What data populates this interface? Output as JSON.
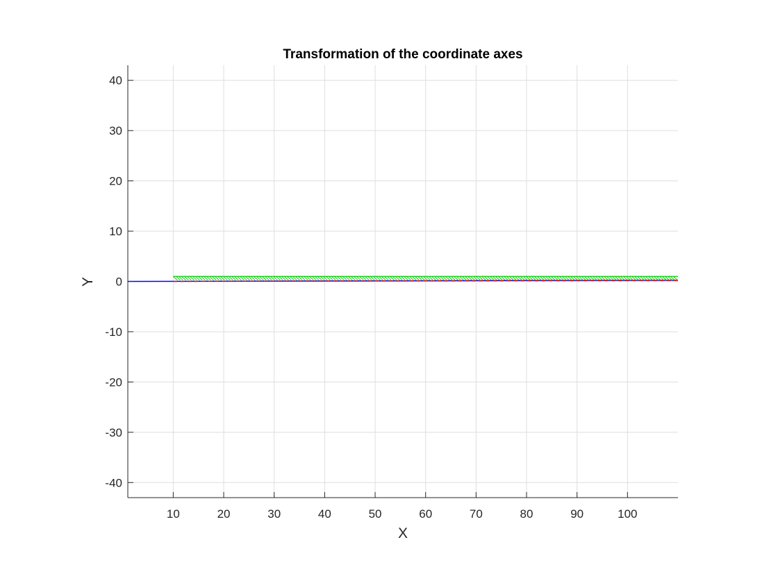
{
  "chart_data": {
    "type": "line",
    "title": "Transformation of the coordinate axes",
    "xlabel": "X",
    "ylabel": "Y",
    "xlim": [
      1,
      110
    ],
    "ylim": [
      -43,
      43
    ],
    "xticks": [
      10,
      20,
      30,
      40,
      50,
      60,
      70,
      80,
      90,
      100
    ],
    "yticks": [
      -40,
      -30,
      -20,
      -10,
      0,
      10,
      20,
      30,
      40
    ],
    "grid": true,
    "legend": "none",
    "series": [
      {
        "color": "#0000ff",
        "style": "solid",
        "x": [
          1,
          110
        ],
        "y": [
          0,
          0.25
        ]
      },
      {
        "color": "#ff0000",
        "style": "dashed",
        "x": [
          10,
          110
        ],
        "y": [
          0,
          0.2
        ]
      },
      {
        "color": "#00cc00",
        "style": "hatch",
        "x": [
          10,
          110
        ],
        "y": [
          1,
          1
        ]
      }
    ]
  }
}
